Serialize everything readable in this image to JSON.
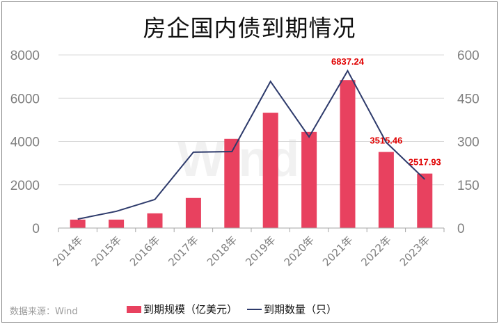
{
  "title": "房企国内债到期情况",
  "source": "数据来源：Wind",
  "watermark": "Wind",
  "legend": {
    "bar_label": "到期规模（亿美元）",
    "line_label": "到期数量（只）"
  },
  "colors": {
    "bar": "#e8415f",
    "line": "#2d3a6b",
    "data_label": "#e00000",
    "axis_text": "#7f7f7f",
    "grid": "#d9d9d9"
  },
  "chart_data": {
    "type": "bar+line",
    "title": "房企国内债到期情况",
    "categories": [
      "2014年",
      "2015年",
      "2016年",
      "2017年",
      "2018年",
      "2019年",
      "2020年",
      "2021年",
      "2022年",
      "2023年"
    ],
    "series": [
      {
        "name": "到期规模（亿美元）",
        "type": "bar",
        "axis": "left",
        "values": [
          390,
          390,
          680,
          1390,
          4120,
          5330,
          4440,
          6837.24,
          3515.46,
          2517.93
        ],
        "data_labels": {
          "7": "6837.24",
          "8": "3515.46",
          "9": "2517.93"
        }
      },
      {
        "name": "到期数量（只）",
        "type": "line",
        "axis": "right",
        "values": [
          31,
          58,
          99,
          263,
          265,
          508,
          316,
          545,
          297,
          169
        ]
      }
    ],
    "left_axis": {
      "ylim": [
        0,
        8000
      ],
      "ticks": [
        "0",
        "2000",
        "4000",
        "6000",
        "8000"
      ]
    },
    "right_axis": {
      "ylim": [
        0,
        600
      ],
      "ticks": [
        "0",
        "150",
        "300",
        "450",
        "600"
      ]
    },
    "grid": true,
    "legend_position": "bottom",
    "xlabel": "",
    "ylabel": ""
  }
}
